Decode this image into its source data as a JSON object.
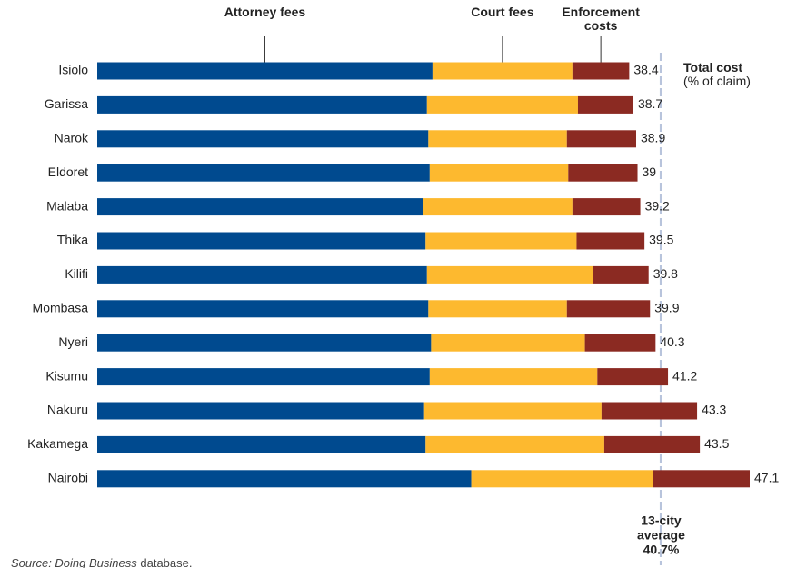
{
  "chart_data": {
    "type": "stacked-bar-horizontal",
    "categories": [
      "Isiolo",
      "Garissa",
      "Narok",
      "Eldoret",
      "Malaba",
      "Thika",
      "Kilifi",
      "Mombasa",
      "Nyeri",
      "Kisumu",
      "Nakuru",
      "Kakamega",
      "Nairobi"
    ],
    "series": [
      {
        "name": "Attorney fees",
        "color": "#004a8f",
        "values": [
          24.2,
          23.8,
          23.9,
          24.0,
          23.5,
          23.7,
          23.8,
          23.9,
          24.1,
          24.0,
          23.6,
          23.7,
          27.0
        ]
      },
      {
        "name": "Court fees",
        "color": "#fdb92f",
        "values": [
          10.1,
          10.9,
          10.0,
          10.0,
          10.8,
          10.9,
          12.0,
          10.0,
          11.1,
          12.1,
          12.8,
          12.9,
          13.1
        ]
      },
      {
        "name": "Enforcement costs",
        "color": "#8b2a22",
        "values": [
          4.1,
          4.0,
          5.0,
          5.0,
          4.9,
          4.9,
          4.0,
          6.0,
          5.1,
          5.1,
          6.9,
          6.9,
          7.0
        ]
      }
    ],
    "totals": [
      38.4,
      38.7,
      38.9,
      39.0,
      39.2,
      39.5,
      39.8,
      39.9,
      40.3,
      41.2,
      43.3,
      43.5,
      47.1
    ],
    "totals_title": "Total cost",
    "totals_subtitle": "(% of claim)",
    "average": 40.7,
    "average_label": [
      "13-city",
      "average",
      "40.7%"
    ],
    "source": [
      "Source: Doing Business",
      "database."
    ]
  }
}
